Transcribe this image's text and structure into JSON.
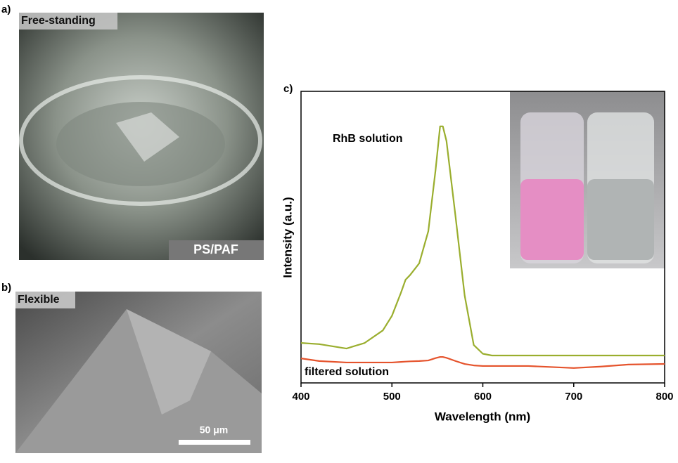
{
  "panels": [
    {
      "label": "a)",
      "caption": "Free-standing",
      "tag": "PS/PAF"
    },
    {
      "label": "b)",
      "caption": "Flexible",
      "scale_bar": "50 μm"
    }
  ],
  "chart_data": {
    "type": "line",
    "panel_label": "c)",
    "xlabel": "Wavelength (nm)",
    "ylabel": "Intensity (a.u.)",
    "x": [
      400,
      420,
      450,
      470,
      490,
      500,
      510,
      515,
      520,
      530,
      540,
      548,
      553,
      556,
      560,
      570,
      580,
      590,
      600,
      610,
      650,
      700,
      730,
      760,
      800
    ],
    "series": [
      {
        "name": "RhB solution",
        "color": "#9aae2e",
        "values": [
          13.7,
          13.3,
          11.8,
          13.7,
          18,
          23,
          31,
          35.4,
          37,
          41,
          52,
          73,
          88,
          88,
          83,
          57,
          30,
          13,
          10,
          9.4,
          9.4,
          9.4,
          9.4,
          9.4,
          9.4
        ]
      },
      {
        "name": "filtered solution",
        "color": "#e5532c",
        "values": [
          8.4,
          7.5,
          7,
          7,
          7,
          7,
          7.2,
          7.3,
          7.4,
          7.5,
          7.7,
          8.5,
          8.9,
          8.9,
          8.6,
          7.5,
          6.5,
          6,
          5.8,
          5.8,
          5.8,
          5.1,
          5.6,
          6.3,
          6.5
        ]
      }
    ],
    "xlim": [
      400,
      800
    ],
    "xticks": [
      400,
      500,
      600,
      700,
      800
    ],
    "ylim": [
      0,
      100
    ]
  }
}
